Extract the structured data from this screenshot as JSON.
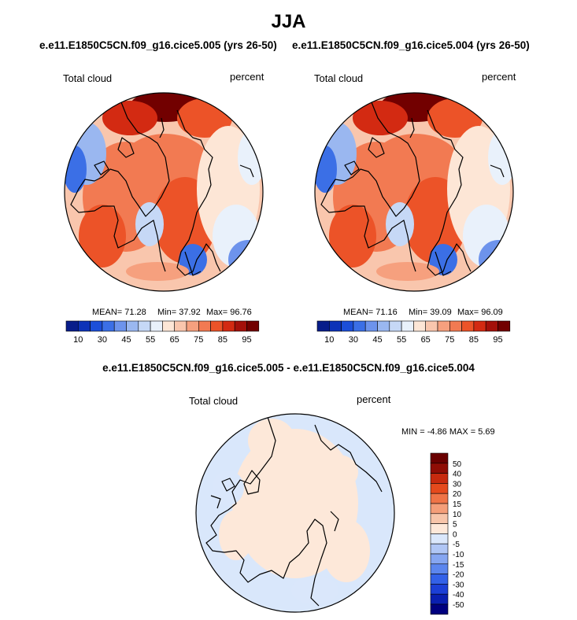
{
  "figure": {
    "season": "JJA",
    "left_title": "e.e11.E1850C5CN.f09_g16.cice5.005 (yrs 26-50)",
    "right_title": "e.e11.E1850C5CN.f09_g16.cice5.004 (yrs 26-50)",
    "diff_title": "e.e11.E1850C5CN.f09_g16.cice5.005 - e.e11.E1850C5CN.f09_g16.cice5.004"
  },
  "chart_data": [
    {
      "type": "heatmap",
      "projection": "north-polar-stereographic",
      "title": "e.e11.E1850C5CN.f09_g16.cice5.005 (yrs 26-50)",
      "variable": "Total cloud",
      "units": "percent",
      "mean_label": "MEAN= 71.28",
      "min_label": "Min= 37.92",
      "max_label": "Max= 96.76",
      "stats": {
        "mean": 71.28,
        "min": 37.92,
        "max": 96.76
      },
      "contour_levels": [
        10,
        20,
        30,
        40,
        45,
        50,
        55,
        60,
        65,
        70,
        75,
        80,
        85,
        90,
        95
      ],
      "colorbar_tick_labels": [
        "10",
        "30",
        "45",
        "55",
        "65",
        "75",
        "85",
        "95"
      ]
    },
    {
      "type": "heatmap",
      "projection": "north-polar-stereographic",
      "title": "e.e11.E1850C5CN.f09_g16.cice5.004 (yrs 26-50)",
      "variable": "Total cloud",
      "units": "percent",
      "mean_label": "MEAN= 71.16",
      "min_label": "Min= 39.09",
      "max_label": "Max= 96.09",
      "stats": {
        "mean": 71.16,
        "min": 39.09,
        "max": 96.09
      },
      "contour_levels": [
        10,
        20,
        30,
        40,
        45,
        50,
        55,
        60,
        65,
        70,
        75,
        80,
        85,
        90,
        95
      ],
      "colorbar_tick_labels": [
        "10",
        "30",
        "45",
        "55",
        "65",
        "75",
        "85",
        "95"
      ]
    },
    {
      "type": "heatmap",
      "projection": "north-polar-stereographic",
      "title": "e.e11.E1850C5CN.f09_g16.cice5.005 - e.e11.E1850C5CN.f09_g16.cice5.004",
      "variable": "Total cloud",
      "units": "percent",
      "minmax_label": "MIN = -4.86 MAX = 5.69",
      "stats": {
        "min": -4.86,
        "max": 5.69
      },
      "contour_levels": [
        -50,
        -40,
        -30,
        -20,
        -15,
        -10,
        -5,
        0,
        5,
        10,
        15,
        20,
        30,
        40,
        50
      ],
      "colorbar_tick_labels": [
        "50",
        "40",
        "30",
        "20",
        "15",
        "10",
        "5",
        "0",
        "-5",
        "-10",
        "-15",
        "-20",
        "-30",
        "-40",
        "-50"
      ]
    }
  ],
  "colors": {
    "abs_scale": [
      "#081d8a",
      "#0d33b8",
      "#1c4fd9",
      "#3b6fe6",
      "#6d93ec",
      "#9ab7f0",
      "#c6d8f6",
      "#e9f1fb",
      "#fde6d6",
      "#f9c6ad",
      "#f6a07e",
      "#f27a52",
      "#ec5328",
      "#d32a12",
      "#a4100a",
      "#720000"
    ],
    "diff_scale": [
      "#00007f",
      "#0a1fb0",
      "#1c3fd6",
      "#3361e8",
      "#5c86ee",
      "#86a6f1",
      "#b0c6f5",
      "#dae7fb",
      "#fde8d9",
      "#f7c5aa",
      "#f49e79",
      "#ef7447",
      "#e54a1d",
      "#c72a0e",
      "#8f0d05",
      "#6a0000"
    ],
    "map_outline": "#000000"
  }
}
